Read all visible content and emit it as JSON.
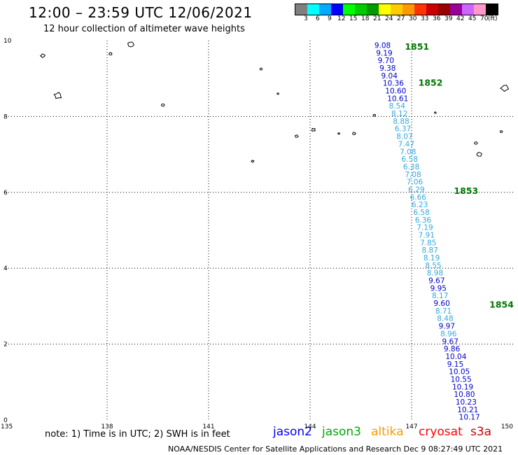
{
  "header": {
    "title": "12:00 – 23:59 UTC 12/06/2021",
    "subtitle": "12 hour collection of altimeter wave heights"
  },
  "legend": {
    "colors": [
      "#808080",
      "#00ffff",
      "#00aaff",
      "#0000ff",
      "#00ff00",
      "#00cc00",
      "#009900",
      "#ffff00",
      "#ffcc00",
      "#ff9900",
      "#ff3300",
      "#cc0000",
      "#990000",
      "#990099",
      "#cc66ff",
      "#ff99cc",
      "#000000"
    ],
    "labels": [
      "3",
      "6",
      "9",
      "12",
      "15",
      "18",
      "21",
      "24",
      "27",
      "30",
      "33",
      "36",
      "39",
      "42",
      "45",
      "70",
      "(ft)"
    ]
  },
  "axes": {
    "x_ticks": [
      "135",
      "138",
      "141",
      "144",
      "147",
      "150"
    ],
    "y_ticks": [
      "10",
      "8",
      "6",
      "4",
      "2",
      "0"
    ],
    "x_values": [
      135,
      138,
      141,
      144,
      147,
      150
    ],
    "y_values": [
      10,
      8,
      6,
      4,
      2,
      0
    ],
    "x_range": [
      135,
      150
    ],
    "y_range": [
      0,
      10
    ],
    "grid": true
  },
  "track": {
    "name_color": "#0000cc",
    "marker_color": "#007700",
    "time_markers": [
      {
        "label": "1851",
        "lon": 146.8,
        "lat": 9.85
      },
      {
        "label": "1852",
        "lon": 147.2,
        "lat": 8.9
      },
      {
        "label": "1853",
        "lon": 148.25,
        "lat": 6.05
      },
      {
        "label": "1854",
        "lon": 149.3,
        "lat": 3.05
      }
    ],
    "points": [
      {
        "value": "9.08",
        "lon": 145.9,
        "lat": 9.88,
        "color": "#0000cc"
      },
      {
        "value": "9.19",
        "lon": 145.95,
        "lat": 9.68,
        "color": "#0000cc"
      },
      {
        "value": "9.70",
        "lon": 146.0,
        "lat": 9.48,
        "color": "#0000cc"
      },
      {
        "value": "9.38",
        "lon": 146.05,
        "lat": 9.28,
        "color": "#0000cc"
      },
      {
        "value": "9.04",
        "lon": 146.1,
        "lat": 9.08,
        "color": "#0000cc"
      },
      {
        "value": "10.36",
        "lon": 146.15,
        "lat": 8.88,
        "color": "#0000cc"
      },
      {
        "value": "10.60",
        "lon": 146.22,
        "lat": 8.68,
        "color": "#0000cc"
      },
      {
        "value": "10.61",
        "lon": 146.28,
        "lat": 8.48,
        "color": "#0000cc"
      },
      {
        "value": "8.54",
        "lon": 146.33,
        "lat": 8.28,
        "color": "#33aadd"
      },
      {
        "value": "8.12",
        "lon": 146.4,
        "lat": 8.08,
        "color": "#33aadd"
      },
      {
        "value": "8.88",
        "lon": 146.45,
        "lat": 7.88,
        "color": "#33aadd"
      },
      {
        "value": "6.37",
        "lon": 146.5,
        "lat": 7.68,
        "color": "#33aadd"
      },
      {
        "value": "8.07",
        "lon": 146.55,
        "lat": 7.48,
        "color": "#33aadd"
      },
      {
        "value": "7.47",
        "lon": 146.6,
        "lat": 7.28,
        "color": "#33aadd"
      },
      {
        "value": "7.08",
        "lon": 146.65,
        "lat": 7.08,
        "color": "#33aadd"
      },
      {
        "value": "6.58",
        "lon": 146.7,
        "lat": 6.88,
        "color": "#33aadd"
      },
      {
        "value": "6.38",
        "lon": 146.75,
        "lat": 6.68,
        "color": "#33aadd"
      },
      {
        "value": "7.08",
        "lon": 146.8,
        "lat": 6.48,
        "color": "#33aadd"
      },
      {
        "value": "7.06",
        "lon": 146.85,
        "lat": 6.28,
        "color": "#33aadd"
      },
      {
        "value": "6.29",
        "lon": 146.9,
        "lat": 6.08,
        "color": "#33aadd"
      },
      {
        "value": "6.66",
        "lon": 146.95,
        "lat": 5.88,
        "color": "#33aadd"
      },
      {
        "value": "6.23",
        "lon": 147.0,
        "lat": 5.68,
        "color": "#33aadd"
      },
      {
        "value": "6.58",
        "lon": 147.05,
        "lat": 5.48,
        "color": "#33aadd"
      },
      {
        "value": "6.36",
        "lon": 147.1,
        "lat": 5.28,
        "color": "#33aadd"
      },
      {
        "value": "7.19",
        "lon": 147.15,
        "lat": 5.08,
        "color": "#33aadd"
      },
      {
        "value": "7.91",
        "lon": 147.2,
        "lat": 4.88,
        "color": "#33aadd"
      },
      {
        "value": "7.85",
        "lon": 147.25,
        "lat": 4.68,
        "color": "#33aadd"
      },
      {
        "value": "8.87",
        "lon": 147.3,
        "lat": 4.48,
        "color": "#33aadd"
      },
      {
        "value": "8.19",
        "lon": 147.35,
        "lat": 4.28,
        "color": "#33aadd"
      },
      {
        "value": "8.55",
        "lon": 147.4,
        "lat": 4.08,
        "color": "#33aadd"
      },
      {
        "value": "8.98",
        "lon": 147.45,
        "lat": 3.88,
        "color": "#33aadd"
      },
      {
        "value": "9.67",
        "lon": 147.5,
        "lat": 3.68,
        "color": "#0000cc"
      },
      {
        "value": "9.95",
        "lon": 147.55,
        "lat": 3.48,
        "color": "#0000cc"
      },
      {
        "value": "8.17",
        "lon": 147.6,
        "lat": 3.28,
        "color": "#33aadd"
      },
      {
        "value": "9.60",
        "lon": 147.65,
        "lat": 3.08,
        "color": "#0000cc"
      },
      {
        "value": "8.71",
        "lon": 147.7,
        "lat": 2.88,
        "color": "#33aadd"
      },
      {
        "value": "8.48",
        "lon": 147.75,
        "lat": 2.68,
        "color": "#33aadd"
      },
      {
        "value": "9.97",
        "lon": 147.8,
        "lat": 2.48,
        "color": "#0000cc"
      },
      {
        "value": "8.96",
        "lon": 147.85,
        "lat": 2.28,
        "color": "#33aadd"
      },
      {
        "value": "9.67",
        "lon": 147.9,
        "lat": 2.08,
        "color": "#0000cc"
      },
      {
        "value": "9.86",
        "lon": 147.95,
        "lat": 1.88,
        "color": "#0000cc"
      },
      {
        "value": "10.04",
        "lon": 148.0,
        "lat": 1.68,
        "color": "#0000cc"
      },
      {
        "value": "9.15",
        "lon": 148.05,
        "lat": 1.48,
        "color": "#0000cc"
      },
      {
        "value": "10.05",
        "lon": 148.1,
        "lat": 1.28,
        "color": "#0000cc"
      },
      {
        "value": "10.55",
        "lon": 148.15,
        "lat": 1.08,
        "color": "#0000cc"
      },
      {
        "value": "10.19",
        "lon": 148.2,
        "lat": 0.88,
        "color": "#0000cc"
      },
      {
        "value": "10.80",
        "lon": 148.25,
        "lat": 0.68,
        "color": "#0000cc"
      },
      {
        "value": "10.23",
        "lon": 148.3,
        "lat": 0.48,
        "color": "#0000cc"
      },
      {
        "value": "10.21",
        "lon": 148.35,
        "lat": 0.28,
        "color": "#0000cc"
      },
      {
        "value": "10.17",
        "lon": 148.4,
        "lat": 0.08,
        "color": "#0000cc"
      }
    ]
  },
  "islands": [
    {
      "lon": 136.55,
      "lat": 8.55,
      "size": 12
    },
    {
      "lon": 136.1,
      "lat": 9.6,
      "size": 7
    },
    {
      "lon": 138.1,
      "lat": 9.65,
      "size": 5
    },
    {
      "lon": 138.7,
      "lat": 9.9,
      "size": 10
    },
    {
      "lon": 139.65,
      "lat": 8.3,
      "size": 5
    },
    {
      "lon": 142.55,
      "lat": 9.25,
      "size": 4
    },
    {
      "lon": 143.05,
      "lat": 8.6,
      "size": 3
    },
    {
      "lon": 143.6,
      "lat": 7.48,
      "size": 5
    },
    {
      "lon": 142.3,
      "lat": 6.82,
      "size": 4
    },
    {
      "lon": 144.1,
      "lat": 7.65,
      "size": 6
    },
    {
      "lon": 144.85,
      "lat": 7.55,
      "size": 3
    },
    {
      "lon": 145.3,
      "lat": 7.55,
      "size": 5
    },
    {
      "lon": 145.9,
      "lat": 8.03,
      "size": 4
    },
    {
      "lon": 147.7,
      "lat": 8.1,
      "size": 3
    },
    {
      "lon": 148.9,
      "lat": 7.3,
      "size": 5
    },
    {
      "lon": 149.0,
      "lat": 7.0,
      "size": 8
    },
    {
      "lon": 149.65,
      "lat": 7.6,
      "size": 4
    },
    {
      "lon": 149.75,
      "lat": 8.75,
      "size": 12
    }
  ],
  "note": "note:  1) Time is in UTC;  2) SWH is in feet",
  "satellites": [
    {
      "name": "jason2",
      "color": "#0000ff"
    },
    {
      "name": "jason3",
      "color": "#00aa00"
    },
    {
      "name": "altika",
      "color": "#ff9900"
    },
    {
      "name": "cryosat",
      "color": "#ff0000"
    },
    {
      "name": "s3a",
      "color": "#cc0000"
    }
  ],
  "footer": "NOAA/NESDIS Center for Satellite Applications and Research     Dec  9 08:27:49 UTC 2021"
}
